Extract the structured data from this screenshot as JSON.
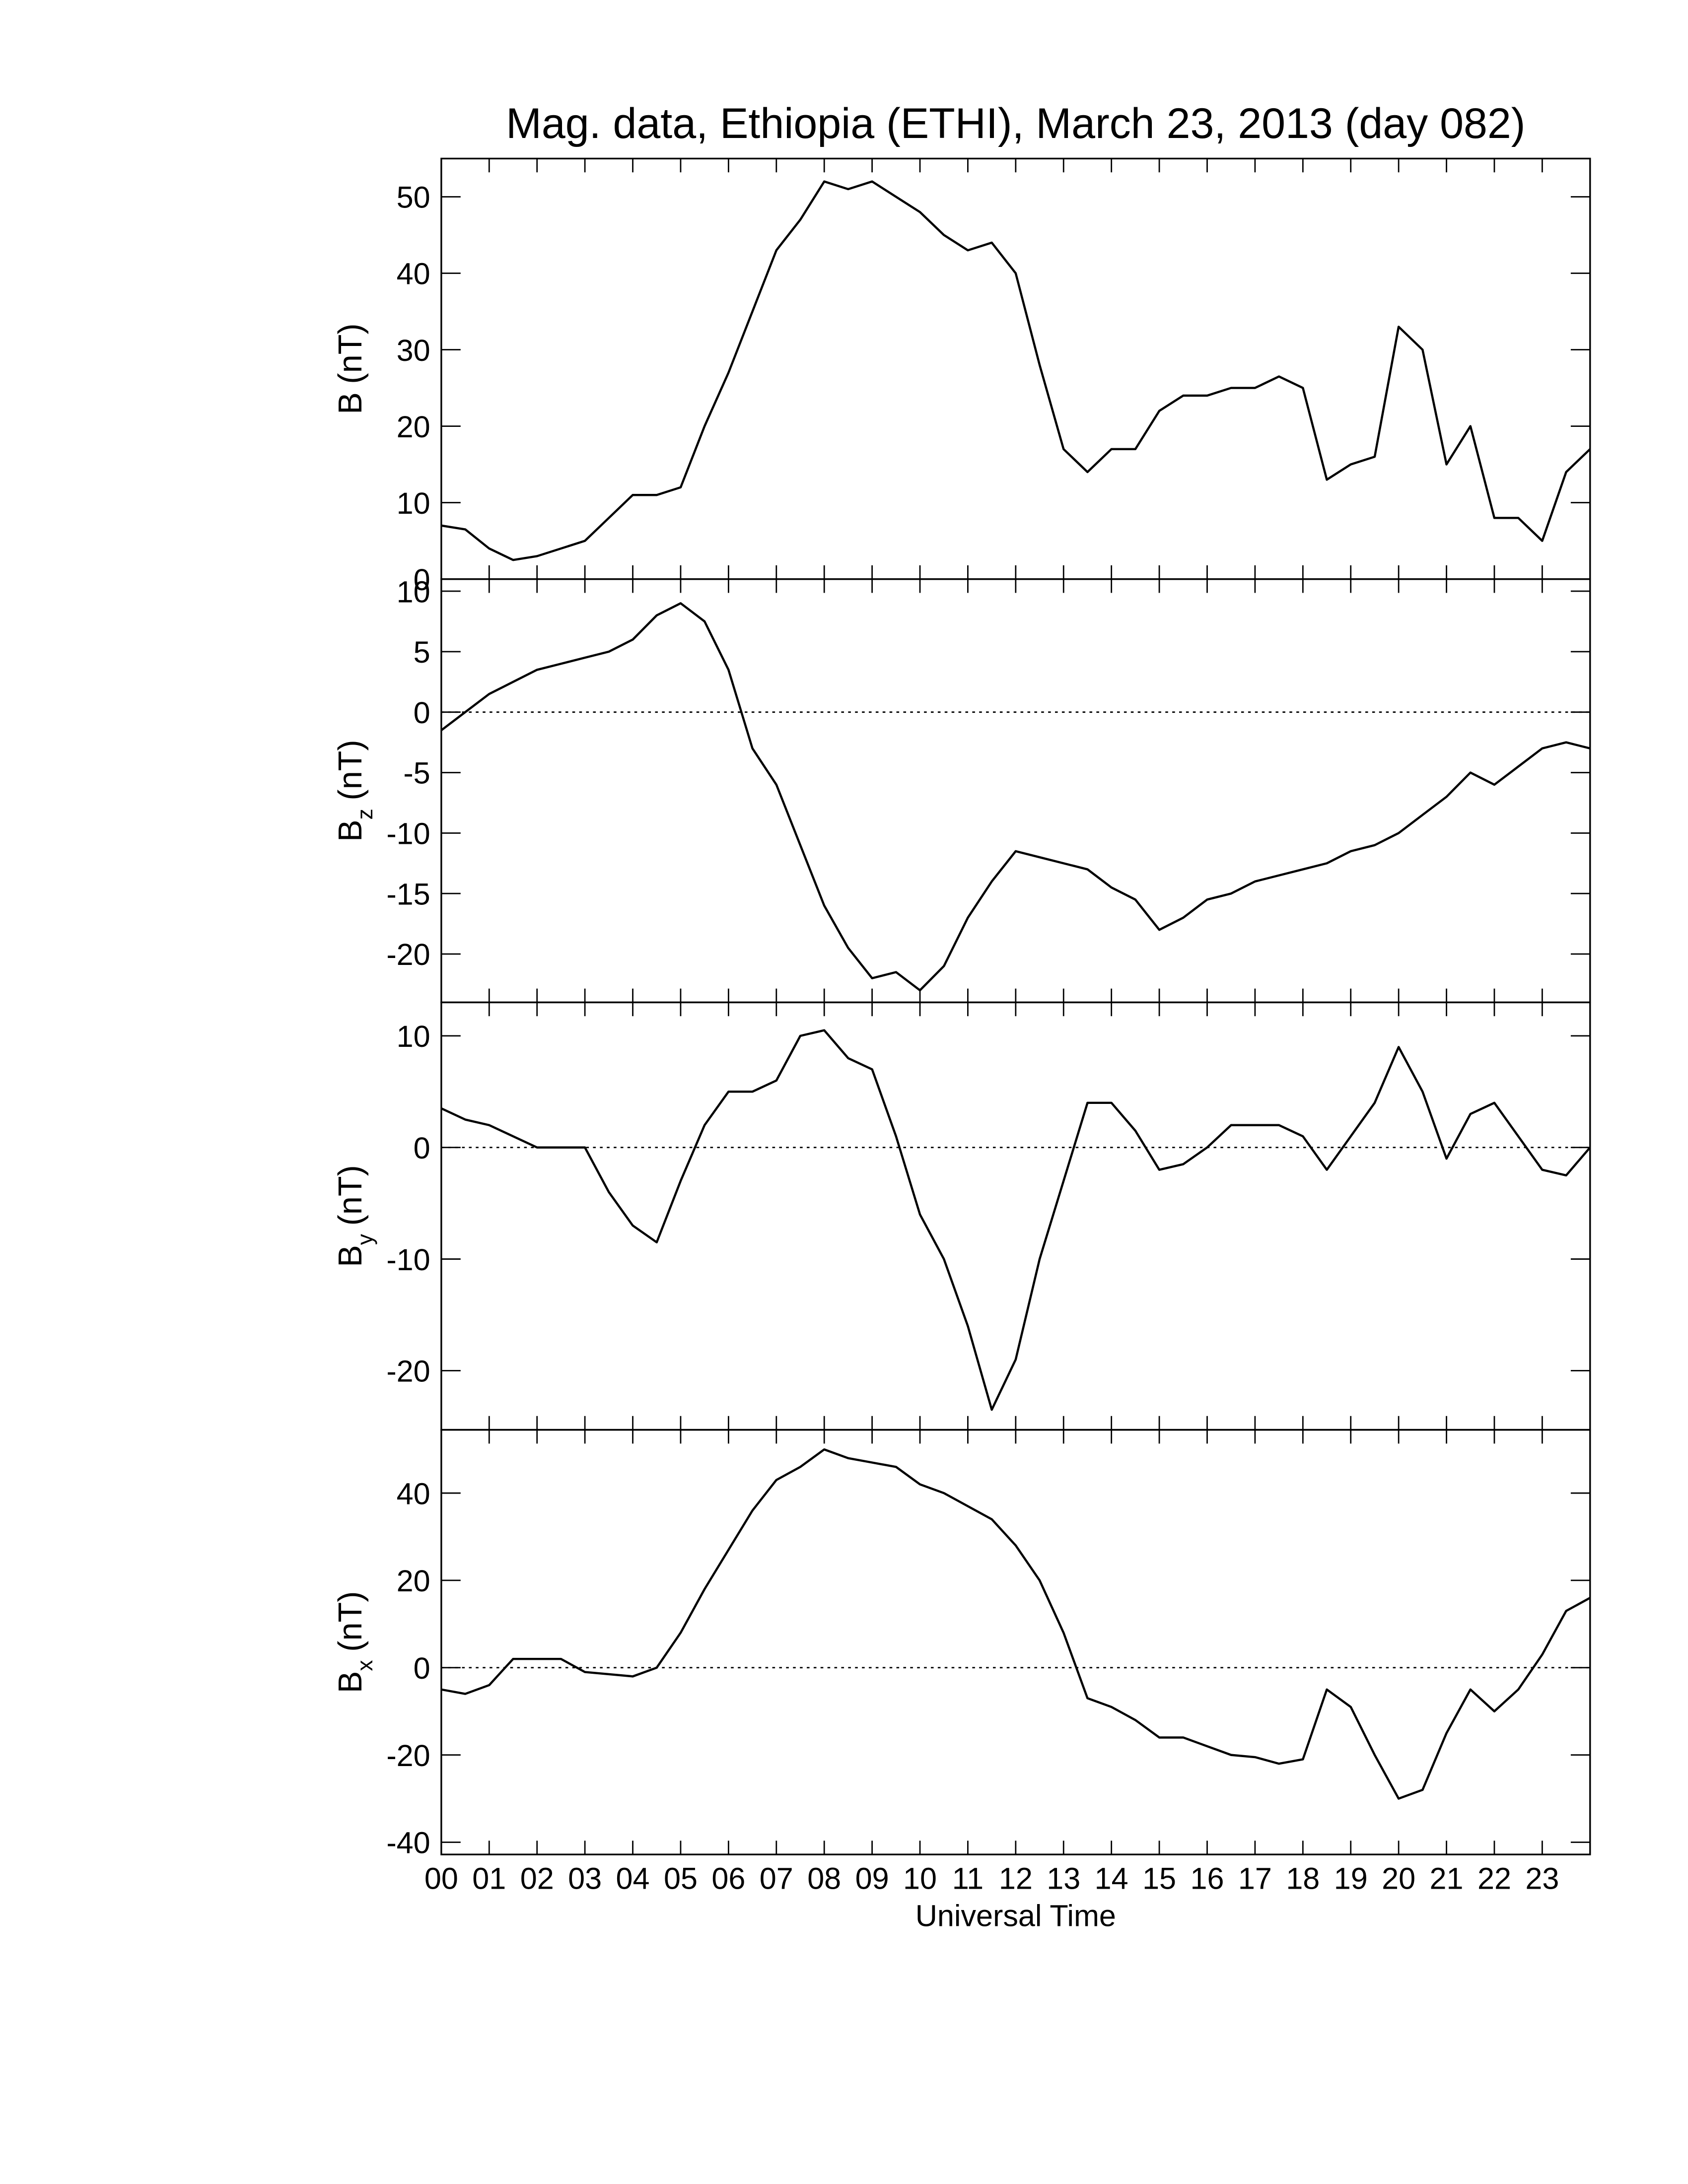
{
  "chart_data": [
    {
      "type": "line",
      "title": "Mag. data, Ethiopia (ETHI), March 23, 2013 (day 082)",
      "ylabel": "B",
      "ylabel_unit": "(nT)",
      "color": "#000000",
      "xlim": [
        0,
        24
      ],
      "ylim": [
        0,
        55
      ],
      "yticks": [
        0,
        10,
        20,
        30,
        40,
        50
      ],
      "zero_line": false,
      "x": [
        0,
        0.5,
        1,
        1.5,
        2,
        2.5,
        3,
        3.5,
        4,
        4.5,
        5,
        5.5,
        6,
        6.5,
        7,
        7.5,
        8,
        8.5,
        9,
        9.5,
        10,
        10.5,
        11,
        11.5,
        12,
        12.5,
        13,
        13.5,
        14,
        14.5,
        15,
        15.5,
        16,
        16.5,
        17,
        17.5,
        18,
        18.5,
        19,
        19.5,
        20,
        20.5,
        21,
        21.5,
        22,
        22.5,
        23,
        23.5,
        24
      ],
      "values": [
        7,
        6.5,
        4,
        2.5,
        3,
        4,
        5,
        8,
        11,
        11,
        12,
        20,
        27,
        35,
        43,
        47,
        52,
        51,
        52,
        50,
        48,
        45,
        43,
        44,
        40,
        28,
        17,
        14,
        17,
        17,
        22,
        24,
        24,
        25,
        25,
        26.5,
        25,
        13,
        15,
        16,
        33,
        30,
        15,
        20,
        8,
        8,
        5,
        14,
        17
      ]
    },
    {
      "type": "line",
      "ylabel": "B",
      "ylabel_sub": "z",
      "ylabel_unit": "(nT)",
      "color": "#000000",
      "xlim": [
        0,
        24
      ],
      "ylim": [
        -24,
        11
      ],
      "yticks": [
        -20,
        -15,
        -10,
        -5,
        0,
        5,
        10
      ],
      "zero_line": true,
      "x": [
        0,
        0.5,
        1,
        1.5,
        2,
        2.5,
        3,
        3.5,
        4,
        4.5,
        5,
        5.5,
        6,
        6.5,
        7,
        7.5,
        8,
        8.5,
        9,
        9.5,
        10,
        10.5,
        11,
        11.5,
        12,
        12.5,
        13,
        13.5,
        14,
        14.5,
        15,
        15.5,
        16,
        16.5,
        17,
        17.5,
        18,
        18.5,
        19,
        19.5,
        20,
        20.5,
        21,
        21.5,
        22,
        22.5,
        23,
        23.5,
        24
      ],
      "values": [
        -1.5,
        0,
        1.5,
        2.5,
        3.5,
        4,
        4.5,
        5,
        6,
        8,
        9,
        7.5,
        3.5,
        -3,
        -6,
        -11,
        -16,
        -19.5,
        -22,
        -21.5,
        -23,
        -21,
        -17,
        -14,
        -11.5,
        -12,
        -12.5,
        -13,
        -14.5,
        -15.5,
        -18,
        -17,
        -15.5,
        -15,
        -14,
        -13.5,
        -13,
        -12.5,
        -11.5,
        -11,
        -10,
        -8.5,
        -7,
        -5,
        -6,
        -4.5,
        -3,
        -2.5,
        -3
      ]
    },
    {
      "type": "line",
      "ylabel": "B",
      "ylabel_sub": "y",
      "ylabel_unit": "(nT)",
      "color": "#000000",
      "xlim": [
        0,
        24
      ],
      "ylim": [
        -25.3,
        13
      ],
      "yticks": [
        -20,
        -10,
        0,
        10
      ],
      "zero_line": true,
      "x": [
        0,
        0.5,
        1,
        1.5,
        2,
        2.5,
        3,
        3.5,
        4,
        4.5,
        5,
        5.5,
        6,
        6.5,
        7,
        7.5,
        8,
        8.5,
        9,
        9.5,
        10,
        10.5,
        11,
        11.5,
        12,
        12.5,
        13,
        13.5,
        14,
        14.5,
        15,
        15.5,
        16,
        16.5,
        17,
        17.5,
        18,
        18.5,
        19,
        19.5,
        20,
        20.5,
        21,
        21.5,
        22,
        22.5,
        23,
        23.5,
        24
      ],
      "values": [
        3.5,
        2.5,
        2,
        1,
        0,
        0,
        0,
        -4,
        -7,
        -8.5,
        -3,
        2,
        5,
        5,
        6,
        10,
        10.5,
        8,
        7,
        1,
        -6,
        -10,
        -16,
        -23.5,
        -19,
        -10,
        -3,
        4,
        4,
        1.5,
        -2,
        -1.5,
        0,
        2,
        2,
        2,
        1,
        -2,
        1,
        4,
        9,
        5,
        -1,
        3,
        4,
        1,
        -2,
        -2.5,
        0
      ]
    },
    {
      "type": "line",
      "ylabel": "B",
      "ylabel_sub": "x",
      "ylabel_unit": "(nT)",
      "xlabel": "Universal Time",
      "color": "#000000",
      "xlim": [
        0,
        24
      ],
      "ylim": [
        -42.8,
        54.5
      ],
      "yticks": [
        -40,
        -20,
        0,
        20,
        40
      ],
      "zero_line": true,
      "xticks": [
        {
          "value": 0,
          "label": "00"
        },
        {
          "value": 1,
          "label": "01"
        },
        {
          "value": 2,
          "label": "02"
        },
        {
          "value": 3,
          "label": "03"
        },
        {
          "value": 4,
          "label": "04"
        },
        {
          "value": 5,
          "label": "05"
        },
        {
          "value": 6,
          "label": "06"
        },
        {
          "value": 7,
          "label": "07"
        },
        {
          "value": 8,
          "label": "08"
        },
        {
          "value": 9,
          "label": "09"
        },
        10,
        11,
        12,
        13,
        14,
        15,
        16,
        17,
        18,
        19,
        20,
        21,
        22,
        23
      ],
      "x": [
        0,
        0.5,
        1,
        1.5,
        2,
        2.5,
        3,
        3.5,
        4,
        4.5,
        5,
        5.5,
        6,
        6.5,
        7,
        7.5,
        8,
        8.5,
        9,
        9.5,
        10,
        10.5,
        11,
        11.5,
        12,
        12.5,
        13,
        13.5,
        14,
        14.5,
        15,
        15.5,
        16,
        16.5,
        17,
        17.5,
        18,
        18.5,
        19,
        19.5,
        20,
        20.5,
        21,
        21.5,
        22,
        22.5,
        23,
        23.5,
        24
      ],
      "values": [
        -5,
        -6,
        -4,
        2,
        2,
        2,
        -1,
        -1.5,
        -2,
        0,
        8,
        18,
        27,
        36,
        43,
        46,
        50,
        48,
        47,
        46,
        42,
        40,
        37,
        34,
        28,
        20,
        8,
        -7,
        -9,
        -12,
        -16,
        -16,
        -18,
        -20,
        -20.5,
        -22,
        -21,
        -5,
        -9,
        -20,
        -30,
        -28,
        -15,
        -5,
        -10,
        -5,
        3,
        13,
        16
      ]
    }
  ]
}
